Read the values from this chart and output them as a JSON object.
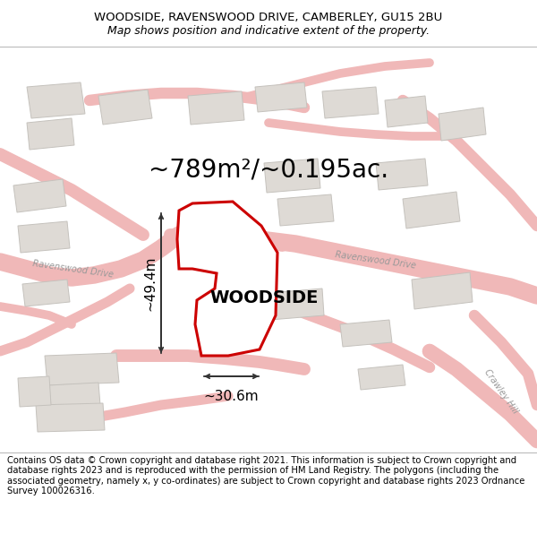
{
  "title_line1": "WOODSIDE, RAVENSWOOD DRIVE, CAMBERLEY, GU15 2BU",
  "title_line2": "Map shows position and indicative extent of the property.",
  "area_label": "~789m²/~0.195ac.",
  "property_name": "WOODSIDE",
  "dim_width": "~30.6m",
  "dim_height": "~49.4m",
  "footer": "Contains OS data © Crown copyright and database right 2021. This information is subject to Crown copyright and database rights 2023 and is reproduced with the permission of HM Land Registry. The polygons (including the associated geometry, namely x, y co-ordinates) are subject to Crown copyright and database rights 2023 Ordnance Survey 100026316.",
  "map_bg": "#f7f5f2",
  "property_fill": "#ffffff",
  "property_outline": "#cc0000",
  "road_color": "#f0b8b8",
  "road_outline": "#e08080",
  "building_fill": "#dedad5",
  "building_outline": "#c5c2bd",
  "green_fill": "#ccd8c0",
  "title_fontsize": 9.5,
  "subtitle_fontsize": 9.0,
  "footer_fontsize": 7.2,
  "area_label_fontsize": 20,
  "property_label_fontsize": 14,
  "dim_fontsize": 11,
  "road_label_fontsize": 7
}
